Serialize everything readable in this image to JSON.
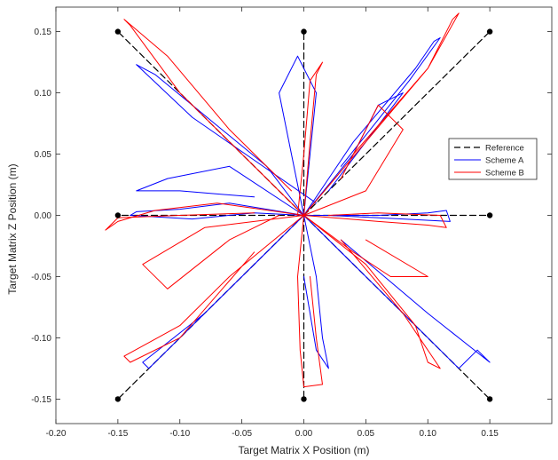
{
  "chart_data": {
    "type": "line",
    "title": "",
    "xlabel": "Target Matrix X Position (m)",
    "ylabel": "Target Matrix Z Position (m)",
    "xlim": [
      -0.2,
      0.2
    ],
    "ylim": [
      -0.17,
      0.17
    ],
    "grid": false,
    "legend_position": "right",
    "x_ticks": [
      -0.2,
      -0.15,
      -0.1,
      -0.05,
      0.0,
      0.05,
      0.1,
      0.15
    ],
    "x_tick_labels": [
      "-0.20",
      "-0.15",
      "-0.10",
      "-0.05",
      "0.00",
      "0.05",
      "0.10",
      "0.15"
    ],
    "y_ticks": [
      0.15,
      0.1,
      0.05,
      0.0,
      -0.05,
      -0.1,
      -0.15
    ],
    "y_tick_labels": [
      "0.15",
      "0.10",
      "0.05",
      "0.00",
      "-0.05",
      "-0.10",
      "-0.15"
    ],
    "targets": [
      {
        "x": -0.15,
        "y": 0.15
      },
      {
        "x": 0.0,
        "y": 0.15
      },
      {
        "x": 0.15,
        "y": 0.15
      },
      {
        "x": -0.15,
        "y": 0.0
      },
      {
        "x": 0.15,
        "y": 0.0
      },
      {
        "x": -0.15,
        "y": -0.15
      },
      {
        "x": 0.0,
        "y": -0.15
      },
      {
        "x": 0.15,
        "y": -0.15
      }
    ],
    "series": [
      {
        "name": "Reference",
        "color": "#000000",
        "style": "dashed",
        "segments": [
          [
            [
              0.0,
              0.0
            ],
            [
              -0.15,
              0.15
            ]
          ],
          [
            [
              0.0,
              0.0
            ],
            [
              0.0,
              0.15
            ]
          ],
          [
            [
              0.0,
              0.0
            ],
            [
              0.15,
              0.15
            ]
          ],
          [
            [
              0.0,
              0.0
            ],
            [
              -0.15,
              0.0
            ]
          ],
          [
            [
              0.0,
              0.0
            ],
            [
              0.15,
              0.0
            ]
          ],
          [
            [
              0.0,
              0.0
            ],
            [
              -0.15,
              -0.15
            ]
          ],
          [
            [
              0.0,
              0.0
            ],
            [
              0.0,
              -0.15
            ]
          ],
          [
            [
              0.0,
              0.0
            ],
            [
              0.15,
              -0.15
            ]
          ]
        ]
      },
      {
        "name": "Scheme A",
        "color": "#0000ff",
        "style": "solid",
        "segments": [
          [
            [
              0.0,
              0.0
            ],
            [
              -0.03,
              0.04
            ],
            [
              -0.09,
              0.09
            ],
            [
              -0.12,
              0.115
            ],
            [
              -0.135,
              0.123
            ]
          ],
          [
            [
              -0.135,
              0.123
            ],
            [
              -0.09,
              0.08
            ],
            [
              -0.04,
              0.045
            ],
            [
              0.01,
              0.01
            ]
          ],
          [
            [
              0.0,
              0.0
            ],
            [
              -0.01,
              0.05
            ],
            [
              -0.02,
              0.1
            ],
            [
              -0.005,
              0.13
            ],
            [
              0.01,
              0.1
            ],
            [
              0.005,
              0.05
            ],
            [
              0.0,
              0.0
            ]
          ],
          [
            [
              0.0,
              0.0
            ],
            [
              0.04,
              0.06
            ],
            [
              0.09,
              0.12
            ],
            [
              0.105,
              0.142
            ],
            [
              0.11,
              0.145
            ],
            [
              0.085,
              0.11
            ],
            [
              0.03,
              0.04
            ]
          ],
          [
            [
              0.0,
              0.0
            ],
            [
              -0.06,
              0.01
            ],
            [
              -0.1,
              0.005
            ],
            [
              -0.135,
              0.003
            ],
            [
              -0.14,
              0.0
            ]
          ],
          [
            [
              -0.14,
              0.0
            ],
            [
              -0.09,
              -0.003
            ],
            [
              -0.04,
              0.002
            ],
            [
              0.0,
              0.0
            ]
          ],
          [
            [
              0.0,
              0.0
            ],
            [
              0.06,
              0.0
            ],
            [
              0.1,
              0.002
            ],
            [
              0.115,
              0.004
            ],
            [
              0.118,
              -0.005
            ],
            [
              0.08,
              -0.003
            ],
            [
              0.02,
              0.0
            ]
          ],
          [
            [
              0.0,
              0.0
            ],
            [
              -0.05,
              -0.05
            ],
            [
              -0.1,
              -0.1
            ],
            [
              -0.125,
              -0.125
            ],
            [
              -0.13,
              -0.12
            ],
            [
              -0.08,
              -0.08
            ],
            [
              -0.02,
              -0.02
            ]
          ],
          [
            [
              0.0,
              0.0
            ],
            [
              0.01,
              -0.05
            ],
            [
              0.015,
              -0.1
            ],
            [
              0.02,
              -0.125
            ],
            [
              0.01,
              -0.11
            ],
            [
              0.0,
              -0.05
            ]
          ],
          [
            [
              0.0,
              0.0
            ],
            [
              0.05,
              -0.05
            ],
            [
              0.1,
              -0.1
            ],
            [
              0.125,
              -0.125
            ],
            [
              0.14,
              -0.11
            ],
            [
              0.15,
              -0.12
            ],
            [
              0.1,
              -0.08
            ],
            [
              0.03,
              -0.02
            ]
          ],
          [
            [
              0.0,
              0.0
            ],
            [
              -0.06,
              0.04
            ],
            [
              -0.11,
              0.03
            ],
            [
              -0.135,
              0.02
            ],
            [
              -0.1,
              0.02
            ],
            [
              -0.04,
              0.015
            ]
          ],
          [
            [
              0.0,
              0.0
            ],
            [
              0.04,
              0.05
            ],
            [
              0.06,
              0.09
            ],
            [
              0.08,
              0.1
            ],
            [
              0.05,
              0.06
            ],
            [
              0.02,
              0.02
            ]
          ]
        ]
      },
      {
        "name": "Scheme B",
        "color": "#ff0000",
        "style": "solid",
        "segments": [
          [
            [
              0.0,
              0.0
            ],
            [
              -0.05,
              0.05
            ],
            [
              -0.1,
              0.1
            ],
            [
              -0.14,
              0.155
            ],
            [
              -0.145,
              0.16
            ],
            [
              -0.11,
              0.13
            ],
            [
              -0.06,
              0.07
            ],
            [
              -0.01,
              0.02
            ]
          ],
          [
            [
              0.0,
              0.0
            ],
            [
              0.005,
              0.06
            ],
            [
              0.01,
              0.115
            ],
            [
              0.015,
              0.125
            ],
            [
              0.005,
              0.11
            ],
            [
              0.0,
              0.05
            ],
            [
              -0.005,
              0.0
            ]
          ],
          [
            [
              0.0,
              0.0
            ],
            [
              0.05,
              0.06
            ],
            [
              0.1,
              0.12
            ],
            [
              0.12,
              0.16
            ],
            [
              0.125,
              0.165
            ],
            [
              0.1,
              0.12
            ],
            [
              0.04,
              0.05
            ]
          ],
          [
            [
              0.0,
              0.0
            ],
            [
              -0.07,
              0.01
            ],
            [
              -0.12,
              0.004
            ],
            [
              -0.15,
              -0.005
            ],
            [
              -0.16,
              -0.012
            ],
            [
              -0.15,
              -0.002
            ],
            [
              -0.1,
              0.0
            ],
            [
              -0.04,
              0.002
            ]
          ],
          [
            [
              0.0,
              0.0
            ],
            [
              0.06,
              -0.005
            ],
            [
              0.1,
              -0.008
            ],
            [
              0.115,
              -0.01
            ],
            [
              0.11,
              0.0
            ],
            [
              0.06,
              0.002
            ],
            [
              0.02,
              0.0
            ]
          ],
          [
            [
              0.0,
              0.0
            ],
            [
              -0.06,
              -0.05
            ],
            [
              -0.1,
              -0.09
            ],
            [
              -0.145,
              -0.115
            ],
            [
              -0.14,
              -0.12
            ],
            [
              -0.1,
              -0.1
            ],
            [
              -0.04,
              -0.03
            ]
          ],
          [
            [
              0.0,
              0.0
            ],
            [
              -0.005,
              -0.05
            ],
            [
              -0.003,
              -0.11
            ],
            [
              0.0,
              -0.14
            ],
            [
              0.015,
              -0.138
            ],
            [
              0.01,
              -0.1
            ],
            [
              0.005,
              -0.05
            ]
          ],
          [
            [
              0.0,
              0.0
            ],
            [
              0.05,
              -0.04
            ],
            [
              0.09,
              -0.09
            ],
            [
              0.1,
              -0.12
            ],
            [
              0.11,
              -0.125
            ],
            [
              0.08,
              -0.08
            ],
            [
              0.03,
              -0.02
            ]
          ],
          [
            [
              0.0,
              0.0
            ],
            [
              -0.08,
              -0.01
            ],
            [
              -0.13,
              -0.04
            ],
            [
              -0.11,
              -0.06
            ],
            [
              -0.06,
              -0.02
            ],
            [
              -0.02,
              0.0
            ]
          ],
          [
            [
              0.0,
              0.0
            ],
            [
              0.05,
              0.02
            ],
            [
              0.08,
              0.07
            ],
            [
              0.06,
              0.09
            ],
            [
              0.03,
              0.03
            ]
          ],
          [
            [
              0.0,
              0.0
            ],
            [
              0.04,
              -0.03
            ],
            [
              0.07,
              -0.05
            ],
            [
              0.1,
              -0.05
            ],
            [
              0.05,
              -0.02
            ]
          ]
        ]
      }
    ]
  }
}
